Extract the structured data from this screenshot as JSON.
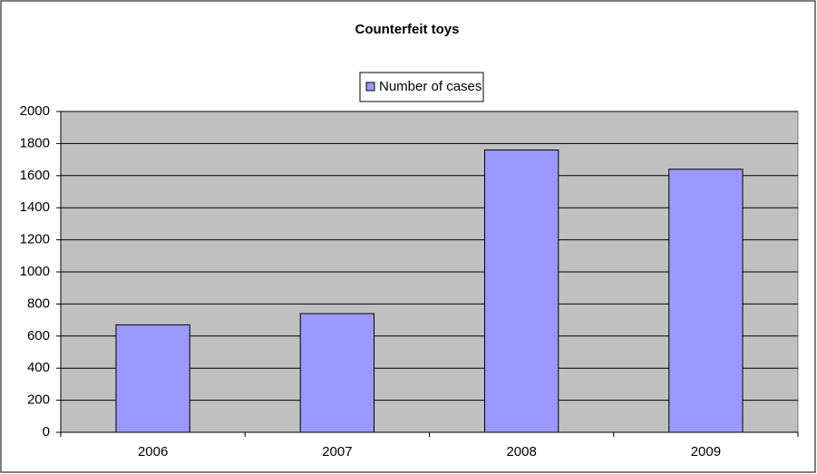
{
  "chart_data": {
    "type": "bar",
    "title": "Counterfeit toys",
    "categories": [
      "2006",
      "2007",
      "2008",
      "2009"
    ],
    "series": [
      {
        "name": "Number of cases",
        "color": "#9999ff",
        "values": [
          670,
          740,
          1760,
          1640
        ]
      }
    ],
    "ylim": [
      0,
      2000
    ],
    "yticks": [
      0,
      200,
      400,
      600,
      800,
      1000,
      1200,
      1400,
      1600,
      1800,
      2000
    ],
    "grid": true,
    "legend": "top"
  }
}
